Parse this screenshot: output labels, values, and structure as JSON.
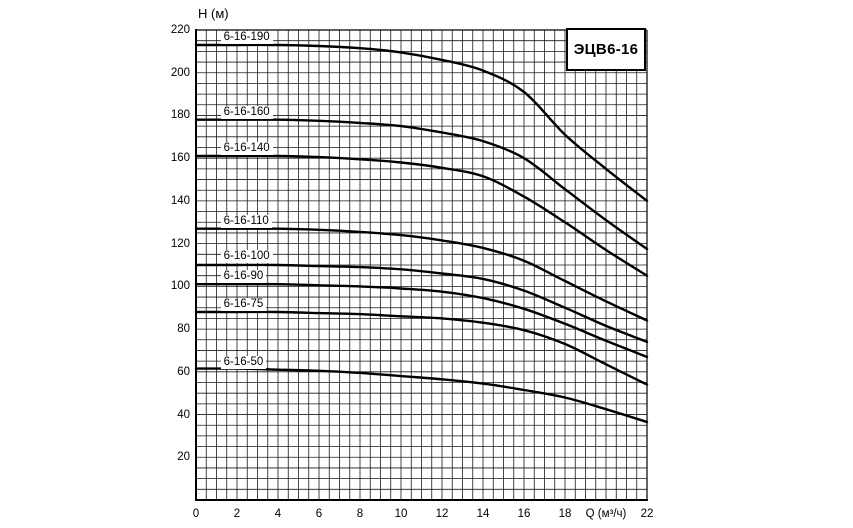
{
  "page": {
    "background": "#ffffff",
    "text_color": "#000000"
  },
  "chart_data": {
    "type": "line",
    "title": "ЭЦВ6-16",
    "ylabel": "Н (м)",
    "xlabel": "Q (м³/ч)",
    "xlim": [
      0,
      22
    ],
    "ylim": [
      0,
      220
    ],
    "x_minor_step": 0.5,
    "y_minor_step": 5,
    "x_tick_step": 2,
    "y_tick_step": 20,
    "grid": "on",
    "legend": "labels-on-curves",
    "line_color": "#000000",
    "grid_color": "#1a1a1a",
    "x_tick_labels": [
      "0",
      "2",
      "4",
      "6",
      "8",
      "10",
      "12",
      "14",
      "16",
      "18",
      "Q (м³/ч)",
      "22"
    ],
    "y_tick_labels": [
      "20",
      "40",
      "60",
      "80",
      "100",
      "120",
      "140",
      "160",
      "180",
      "200",
      "220"
    ],
    "x": [
      0,
      2,
      4,
      6,
      8,
      10,
      12,
      14,
      16,
      18,
      20,
      22
    ],
    "series": [
      {
        "name": "6-16-190",
        "label_at": [
          1.2,
          216.5
        ],
        "values": [
          213,
          213,
          213,
          212.5,
          211.5,
          209.5,
          206,
          201,
          191,
          171,
          155,
          140
        ]
      },
      {
        "name": "6-16-160",
        "label_at": [
          1.2,
          181.5
        ],
        "values": [
          178,
          178,
          178,
          177.5,
          176.5,
          175,
          172,
          168,
          160,
          145.5,
          131,
          117.5
        ]
      },
      {
        "name": "6-16-140",
        "label_at": [
          1.2,
          164.5
        ],
        "values": [
          161,
          161,
          161,
          160.5,
          159.5,
          158,
          155.5,
          151.5,
          142,
          130,
          117,
          105
        ]
      },
      {
        "name": "6-16-110",
        "label_at": [
          1.2,
          130.5
        ],
        "values": [
          127,
          127,
          127,
          126.5,
          125.5,
          124,
          121.5,
          118,
          112,
          102.5,
          93,
          84
        ]
      },
      {
        "name": "6-16-100",
        "label_at": [
          1.2,
          114.0
        ],
        "values": [
          110,
          110,
          110,
          109.5,
          109,
          108,
          106,
          103.5,
          98,
          90,
          81.5,
          74
        ]
      },
      {
        "name": "6-16-90",
        "label_at": [
          1.2,
          104.8
        ],
        "values": [
          101,
          101,
          101,
          100.5,
          100,
          99,
          97.5,
          94.5,
          89.5,
          82.5,
          74.5,
          67
        ]
      },
      {
        "name": "6-16-75",
        "label_at": [
          1.2,
          91.5
        ],
        "values": [
          88,
          88,
          88,
          87.5,
          87,
          86,
          85,
          83,
          79.5,
          73,
          63.5,
          54
        ]
      },
      {
        "name": "6-16-50",
        "label_at": [
          1.2,
          64.5
        ],
        "values": [
          61.5,
          61.5,
          61,
          60.5,
          59.5,
          58,
          56.5,
          54.5,
          51.5,
          48,
          42.5,
          36.5
        ]
      }
    ]
  }
}
